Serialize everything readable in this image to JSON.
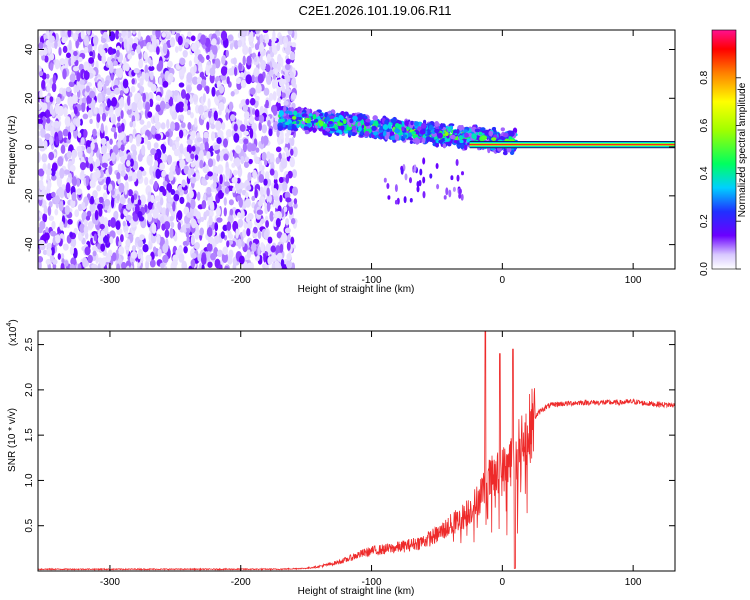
{
  "title": "C2E1.2026.101.19.06.R11",
  "colorbar": {
    "label": "Normalized spectral amplitude",
    "ticks": [
      "0.0",
      "0.2",
      "0.4",
      "0.6",
      "0.8"
    ],
    "tick_values": [
      0.0,
      0.2,
      0.4,
      0.6,
      0.8
    ],
    "range": [
      0.0,
      1.0
    ]
  },
  "chart_data": [
    {
      "type": "heatmap",
      "xlabel": "Height of straight line (km)",
      "ylabel": "Frequency (Hz)",
      "xlim": [
        -355,
        132
      ],
      "ylim": [
        -50,
        48
      ],
      "x_ticks": [
        -300,
        -200,
        -100,
        0,
        100
      ],
      "y_ticks": [
        -40,
        -20,
        0,
        20,
        40
      ],
      "colormap": "rainbow (purple low to magenta high)",
      "regions": [
        {
          "name": "noise",
          "x_range": [
            -355,
            -158
          ],
          "freq_range": [
            -50,
            48
          ],
          "amplitude_range": [
            0.0,
            0.15
          ]
        },
        {
          "name": "signal band",
          "x_range": [
            -170,
            10
          ],
          "freq_center_start": 12,
          "freq_center_end": 2,
          "half_width": 5,
          "amplitude_range": [
            0.05,
            0.6
          ]
        },
        {
          "name": "carrier",
          "x_range": [
            -25,
            132
          ],
          "freq_center": 1,
          "half_width": 1.3,
          "amplitude": 1.0
        }
      ]
    },
    {
      "type": "line",
      "xlabel": "Height of straight line (km)",
      "ylabel": "SNR (10 * v/v)",
      "y_scale_label": "(x10",
      "y_scale_exponent": "4",
      "xlim": [
        -355,
        132
      ],
      "ylim": [
        0,
        2.65
      ],
      "x_ticks": [
        -300,
        -200,
        -100,
        0,
        100
      ],
      "y_ticks": [
        0.5,
        1.0,
        1.5,
        2.0,
        2.5
      ],
      "y_tick_labels": [
        "0.5",
        "1.0",
        "1.5",
        "2.0",
        "2.5"
      ],
      "series": [
        {
          "color": "#ee2a2a",
          "x": [
            -355,
            -300,
            -250,
            -200,
            -170,
            -160,
            -150,
            -140,
            -130,
            -120,
            -110,
            -100,
            -90,
            -80,
            -70,
            -60,
            -50,
            -40,
            -30,
            -20,
            -15,
            -10,
            -5,
            0,
            5,
            10,
            15,
            20,
            25,
            30,
            35,
            40,
            50,
            60,
            70,
            80,
            90,
            100,
            110,
            120,
            132
          ],
          "values": [
            0.02,
            0.02,
            0.02,
            0.02,
            0.02,
            0.025,
            0.03,
            0.05,
            0.08,
            0.12,
            0.18,
            0.22,
            0.24,
            0.26,
            0.29,
            0.33,
            0.4,
            0.5,
            0.6,
            0.75,
            0.9,
            1.0,
            1.05,
            1.1,
            1.2,
            1.3,
            1.4,
            1.55,
            1.7,
            1.78,
            1.82,
            1.84,
            1.85,
            1.86,
            1.86,
            1.86,
            1.86,
            1.87,
            1.85,
            1.84,
            1.83
          ],
          "peak_spikes": [
            {
              "x": -13,
              "value": 2.65
            },
            {
              "x": -2,
              "value": 2.4
            },
            {
              "x": 8,
              "value": 2.45
            }
          ]
        }
      ]
    }
  ]
}
